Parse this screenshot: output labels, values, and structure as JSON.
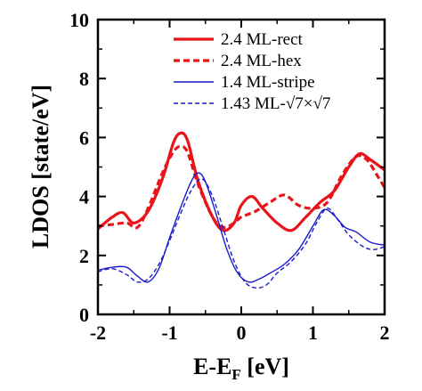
{
  "chart_data": {
    "type": "line",
    "xlabel": "E-E",
    "xlabel_subscript": "F",
    "xlabel_unit": " [eV]",
    "ylabel": "LDOS [state/eV]",
    "xlim": [
      -2,
      2
    ],
    "ylim": [
      0,
      10
    ],
    "x_ticks": [
      -2,
      -1,
      0,
      1,
      2
    ],
    "y_ticks": [
      0,
      2,
      4,
      6,
      8,
      10
    ],
    "x_tick_labels": [
      "-2",
      "-1",
      "0",
      "1",
      "2"
    ],
    "y_tick_labels": [
      "0",
      "2",
      "4",
      "6",
      "8",
      "10"
    ],
    "grid": false,
    "legend_position": "top-right",
    "series": [
      {
        "name": "2.4 ML-rect",
        "color": "#e8141a",
        "dash": "solid",
        "width": "thick",
        "x": [
          -2.0,
          -1.8,
          -1.65,
          -1.5,
          -1.3,
          -1.1,
          -0.95,
          -0.85,
          -0.75,
          -0.6,
          -0.4,
          -0.25,
          -0.1,
          0.0,
          0.15,
          0.3,
          0.5,
          0.7,
          0.9,
          1.1,
          1.3,
          1.5,
          1.65,
          1.8,
          2.0
        ],
        "y": [
          2.9,
          3.3,
          3.45,
          3.1,
          3.5,
          4.6,
          5.8,
          6.15,
          5.9,
          4.5,
          3.3,
          2.85,
          3.1,
          3.7,
          4.0,
          3.6,
          3.1,
          2.85,
          3.3,
          3.8,
          4.2,
          5.0,
          5.45,
          5.25,
          4.9
        ]
      },
      {
        "name": "2.4 ML-hex",
        "color": "#e8141a",
        "dash": "dashed",
        "width": "thick",
        "x": [
          -2.0,
          -1.8,
          -1.6,
          -1.45,
          -1.3,
          -1.1,
          -0.95,
          -0.85,
          -0.75,
          -0.6,
          -0.4,
          -0.25,
          -0.1,
          0.0,
          0.2,
          0.4,
          0.6,
          0.8,
          1.0,
          1.2,
          1.4,
          1.6,
          1.75,
          1.9,
          2.0
        ],
        "y": [
          3.0,
          3.05,
          3.1,
          2.95,
          3.6,
          4.8,
          5.5,
          5.7,
          5.5,
          4.4,
          3.3,
          2.95,
          3.1,
          3.3,
          3.5,
          3.8,
          4.05,
          3.7,
          3.6,
          3.8,
          4.7,
          5.35,
          5.25,
          4.7,
          4.3
        ]
      },
      {
        "name": "1.4 ML-stripe",
        "color": "#1a1acc",
        "dash": "solid",
        "width": "thin",
        "x": [
          -2.0,
          -1.8,
          -1.6,
          -1.45,
          -1.3,
          -1.15,
          -1.0,
          -0.85,
          -0.7,
          -0.6,
          -0.5,
          -0.35,
          -0.2,
          -0.05,
          0.1,
          0.25,
          0.4,
          0.6,
          0.8,
          1.0,
          1.15,
          1.3,
          1.45,
          1.6,
          1.8,
          2.0
        ],
        "y": [
          1.5,
          1.6,
          1.6,
          1.3,
          1.1,
          1.55,
          2.6,
          3.6,
          4.5,
          4.8,
          4.5,
          3.4,
          2.2,
          1.4,
          1.1,
          1.2,
          1.4,
          1.7,
          2.2,
          3.0,
          3.55,
          3.35,
          2.95,
          2.8,
          2.45,
          2.35
        ]
      },
      {
        "name": "1.43 ML-√7×√7",
        "color": "#1a1acc",
        "dash": "dashed",
        "width": "thin",
        "x": [
          -2.0,
          -1.8,
          -1.6,
          -1.45,
          -1.3,
          -1.15,
          -1.0,
          -0.85,
          -0.7,
          -0.55,
          -0.4,
          -0.25,
          -0.1,
          0.05,
          0.2,
          0.35,
          0.5,
          0.7,
          0.9,
          1.05,
          1.2,
          1.35,
          1.5,
          1.7,
          1.85,
          2.0
        ],
        "y": [
          1.45,
          1.55,
          1.35,
          1.1,
          1.2,
          1.7,
          2.5,
          3.4,
          4.2,
          4.6,
          4.0,
          2.9,
          1.8,
          1.1,
          0.9,
          1.0,
          1.4,
          1.8,
          2.4,
          3.1,
          3.6,
          3.2,
          2.7,
          2.3,
          2.2,
          2.3
        ]
      }
    ]
  }
}
